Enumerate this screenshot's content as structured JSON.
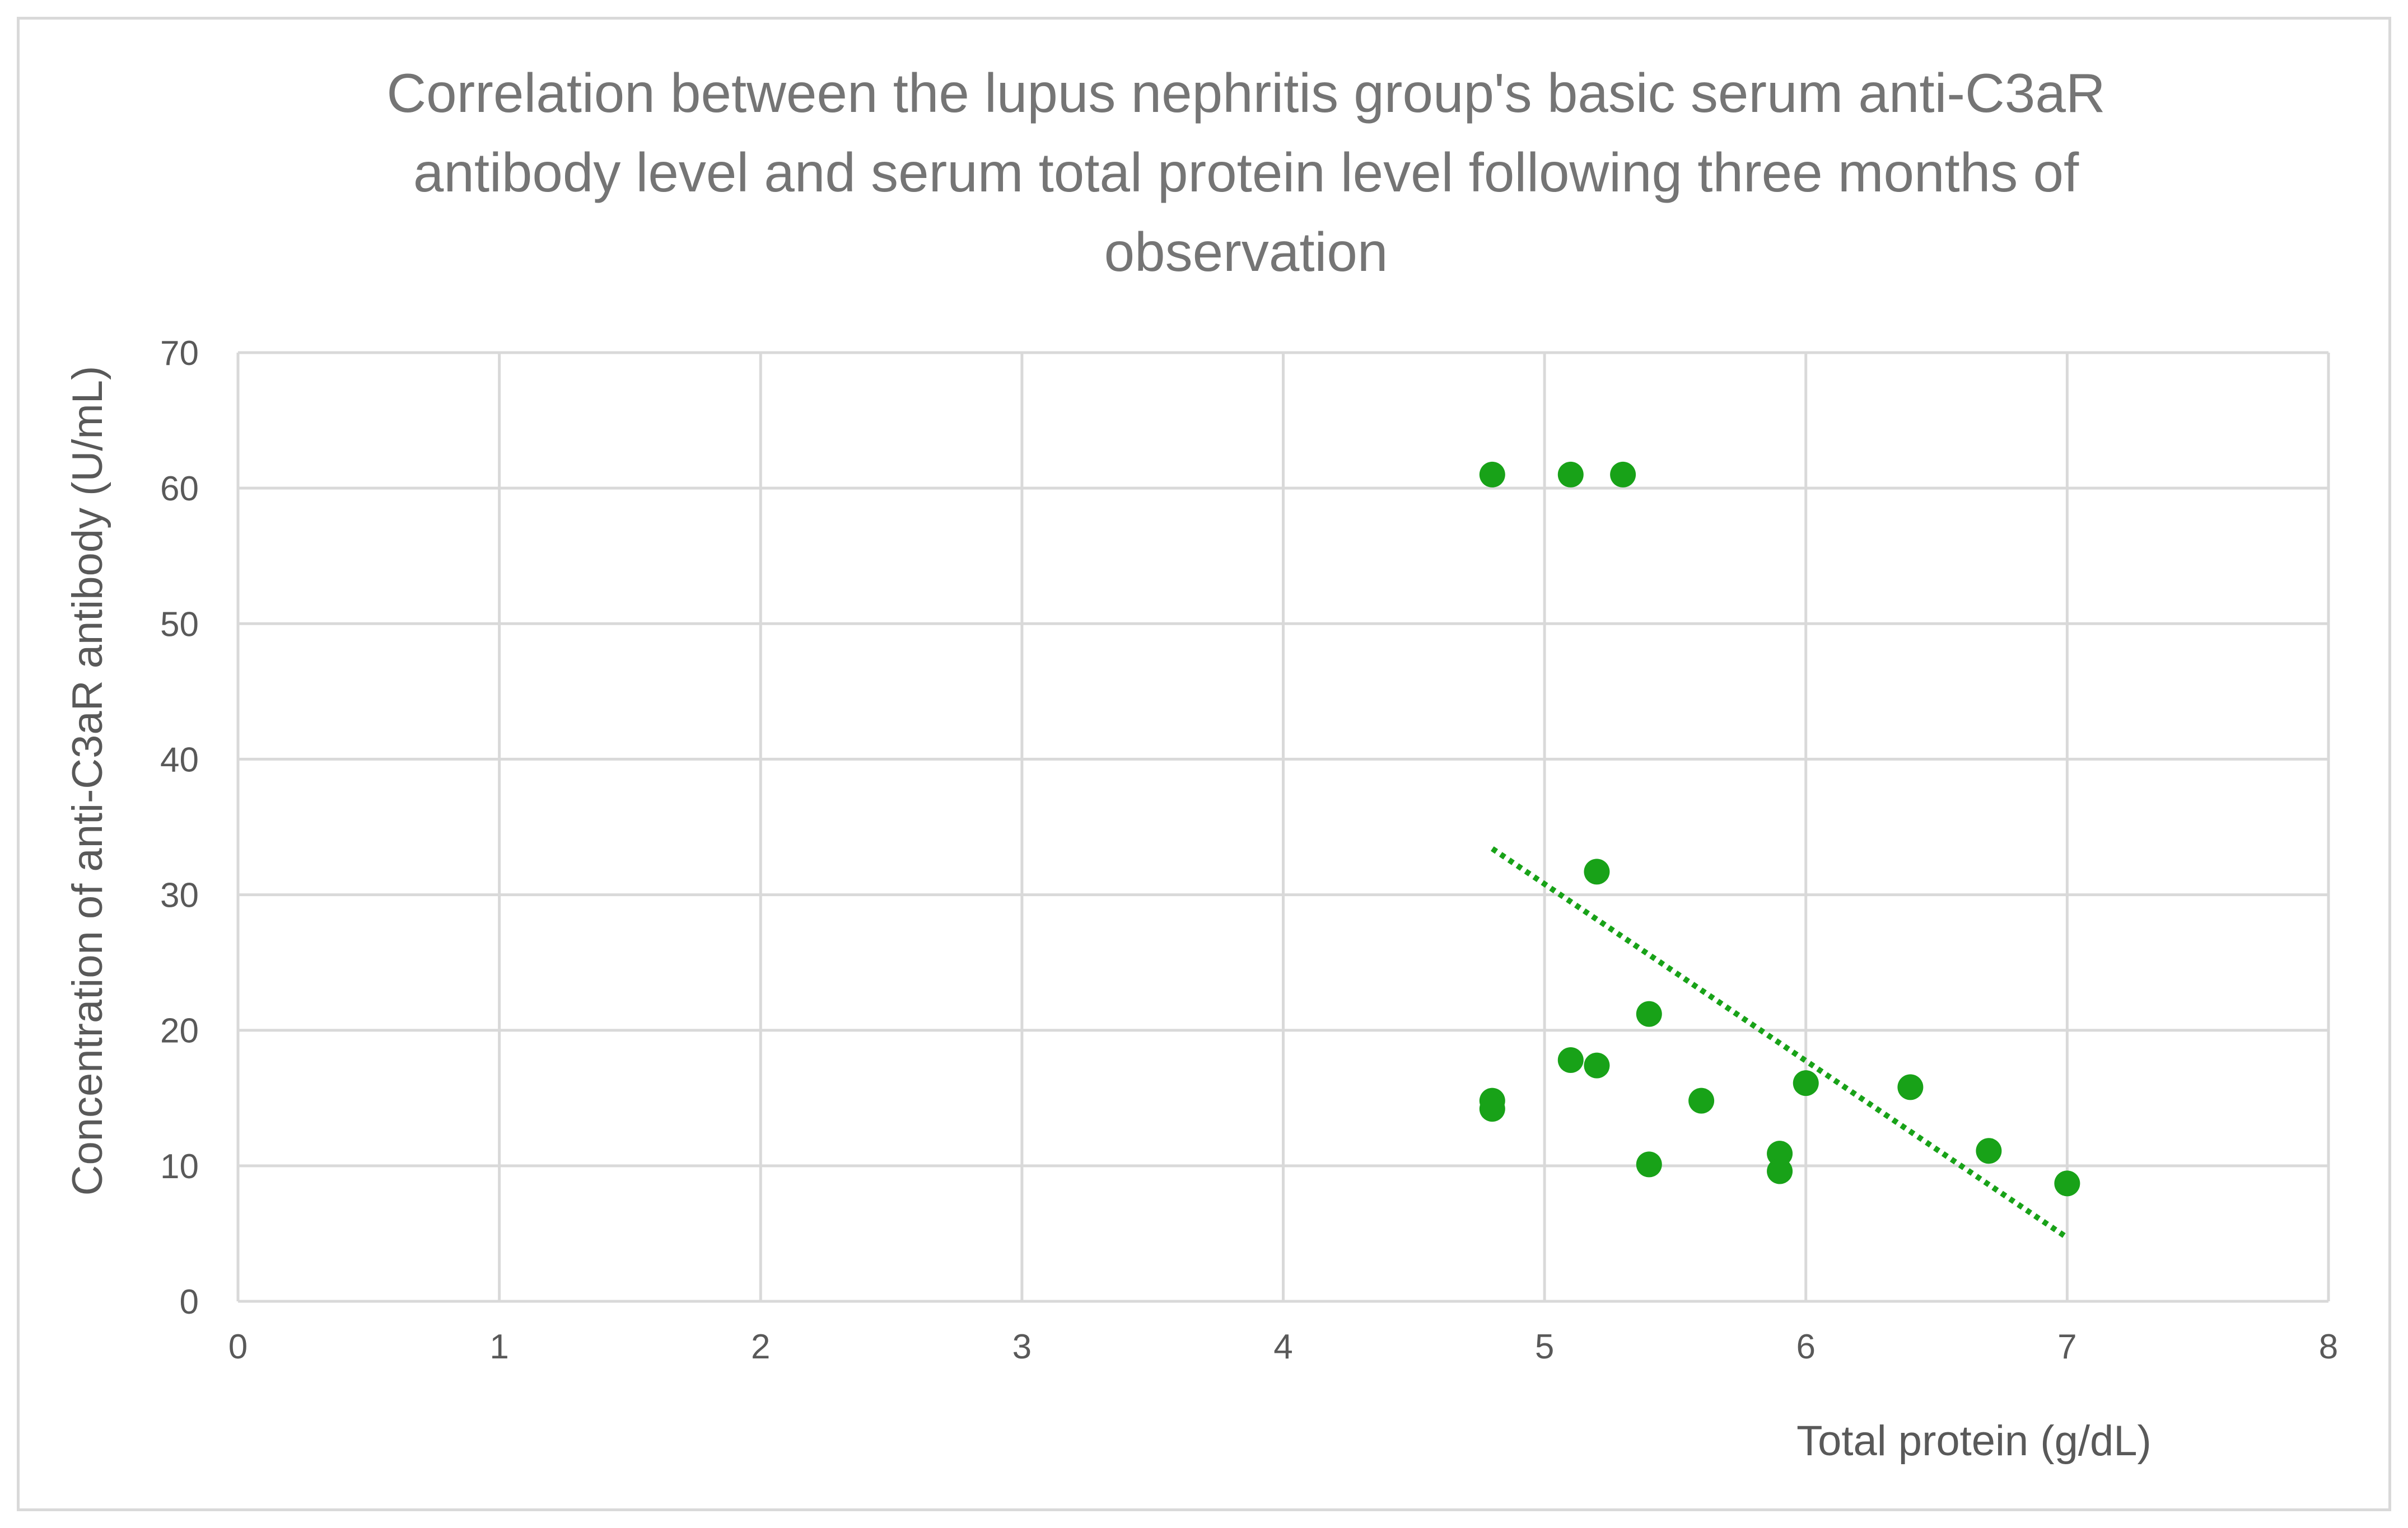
{
  "chart_data": {
    "type": "scatter",
    "title": "Correlation between the lupus nephritis group's basic serum anti-C3aR antibody level and serum total protein level following three months of observation",
    "xlabel": "Total protein (g/dL)",
    "ylabel": "Concentration of anti-C3aR antibody (U/mL)",
    "xlim": [
      0,
      8
    ],
    "ylim": [
      0,
      70
    ],
    "x_ticks": [
      "0",
      "1",
      "2",
      "3",
      "4",
      "5",
      "6",
      "7",
      "8"
    ],
    "y_ticks": [
      "0",
      "10",
      "20",
      "30",
      "40",
      "50",
      "60",
      "70"
    ],
    "grid": true,
    "marker_color": "#18a218",
    "trendline_color": "#18a218",
    "series": [
      {
        "name": "Anti-C3aR antibody",
        "points": [
          {
            "x": 4.8,
            "y": 61.0
          },
          {
            "x": 5.1,
            "y": 61.0
          },
          {
            "x": 5.3,
            "y": 61.0
          },
          {
            "x": 5.2,
            "y": 31.7
          },
          {
            "x": 5.4,
            "y": 21.2
          },
          {
            "x": 5.1,
            "y": 17.8
          },
          {
            "x": 5.2,
            "y": 17.4
          },
          {
            "x": 4.8,
            "y": 14.8
          },
          {
            "x": 4.8,
            "y": 14.2
          },
          {
            "x": 5.6,
            "y": 14.8
          },
          {
            "x": 6.0,
            "y": 16.1
          },
          {
            "x": 6.4,
            "y": 15.8
          },
          {
            "x": 5.4,
            "y": 10.1
          },
          {
            "x": 5.9,
            "y": 10.9
          },
          {
            "x": 5.9,
            "y": 9.6
          },
          {
            "x": 6.7,
            "y": 11.1
          },
          {
            "x": 7.0,
            "y": 8.7
          }
        ]
      }
    ],
    "trendline": {
      "type": "linear",
      "x_start": 4.8,
      "x_end": 7.0,
      "y_start": 33.4,
      "y_end": 4.7,
      "style": "dotted"
    }
  }
}
